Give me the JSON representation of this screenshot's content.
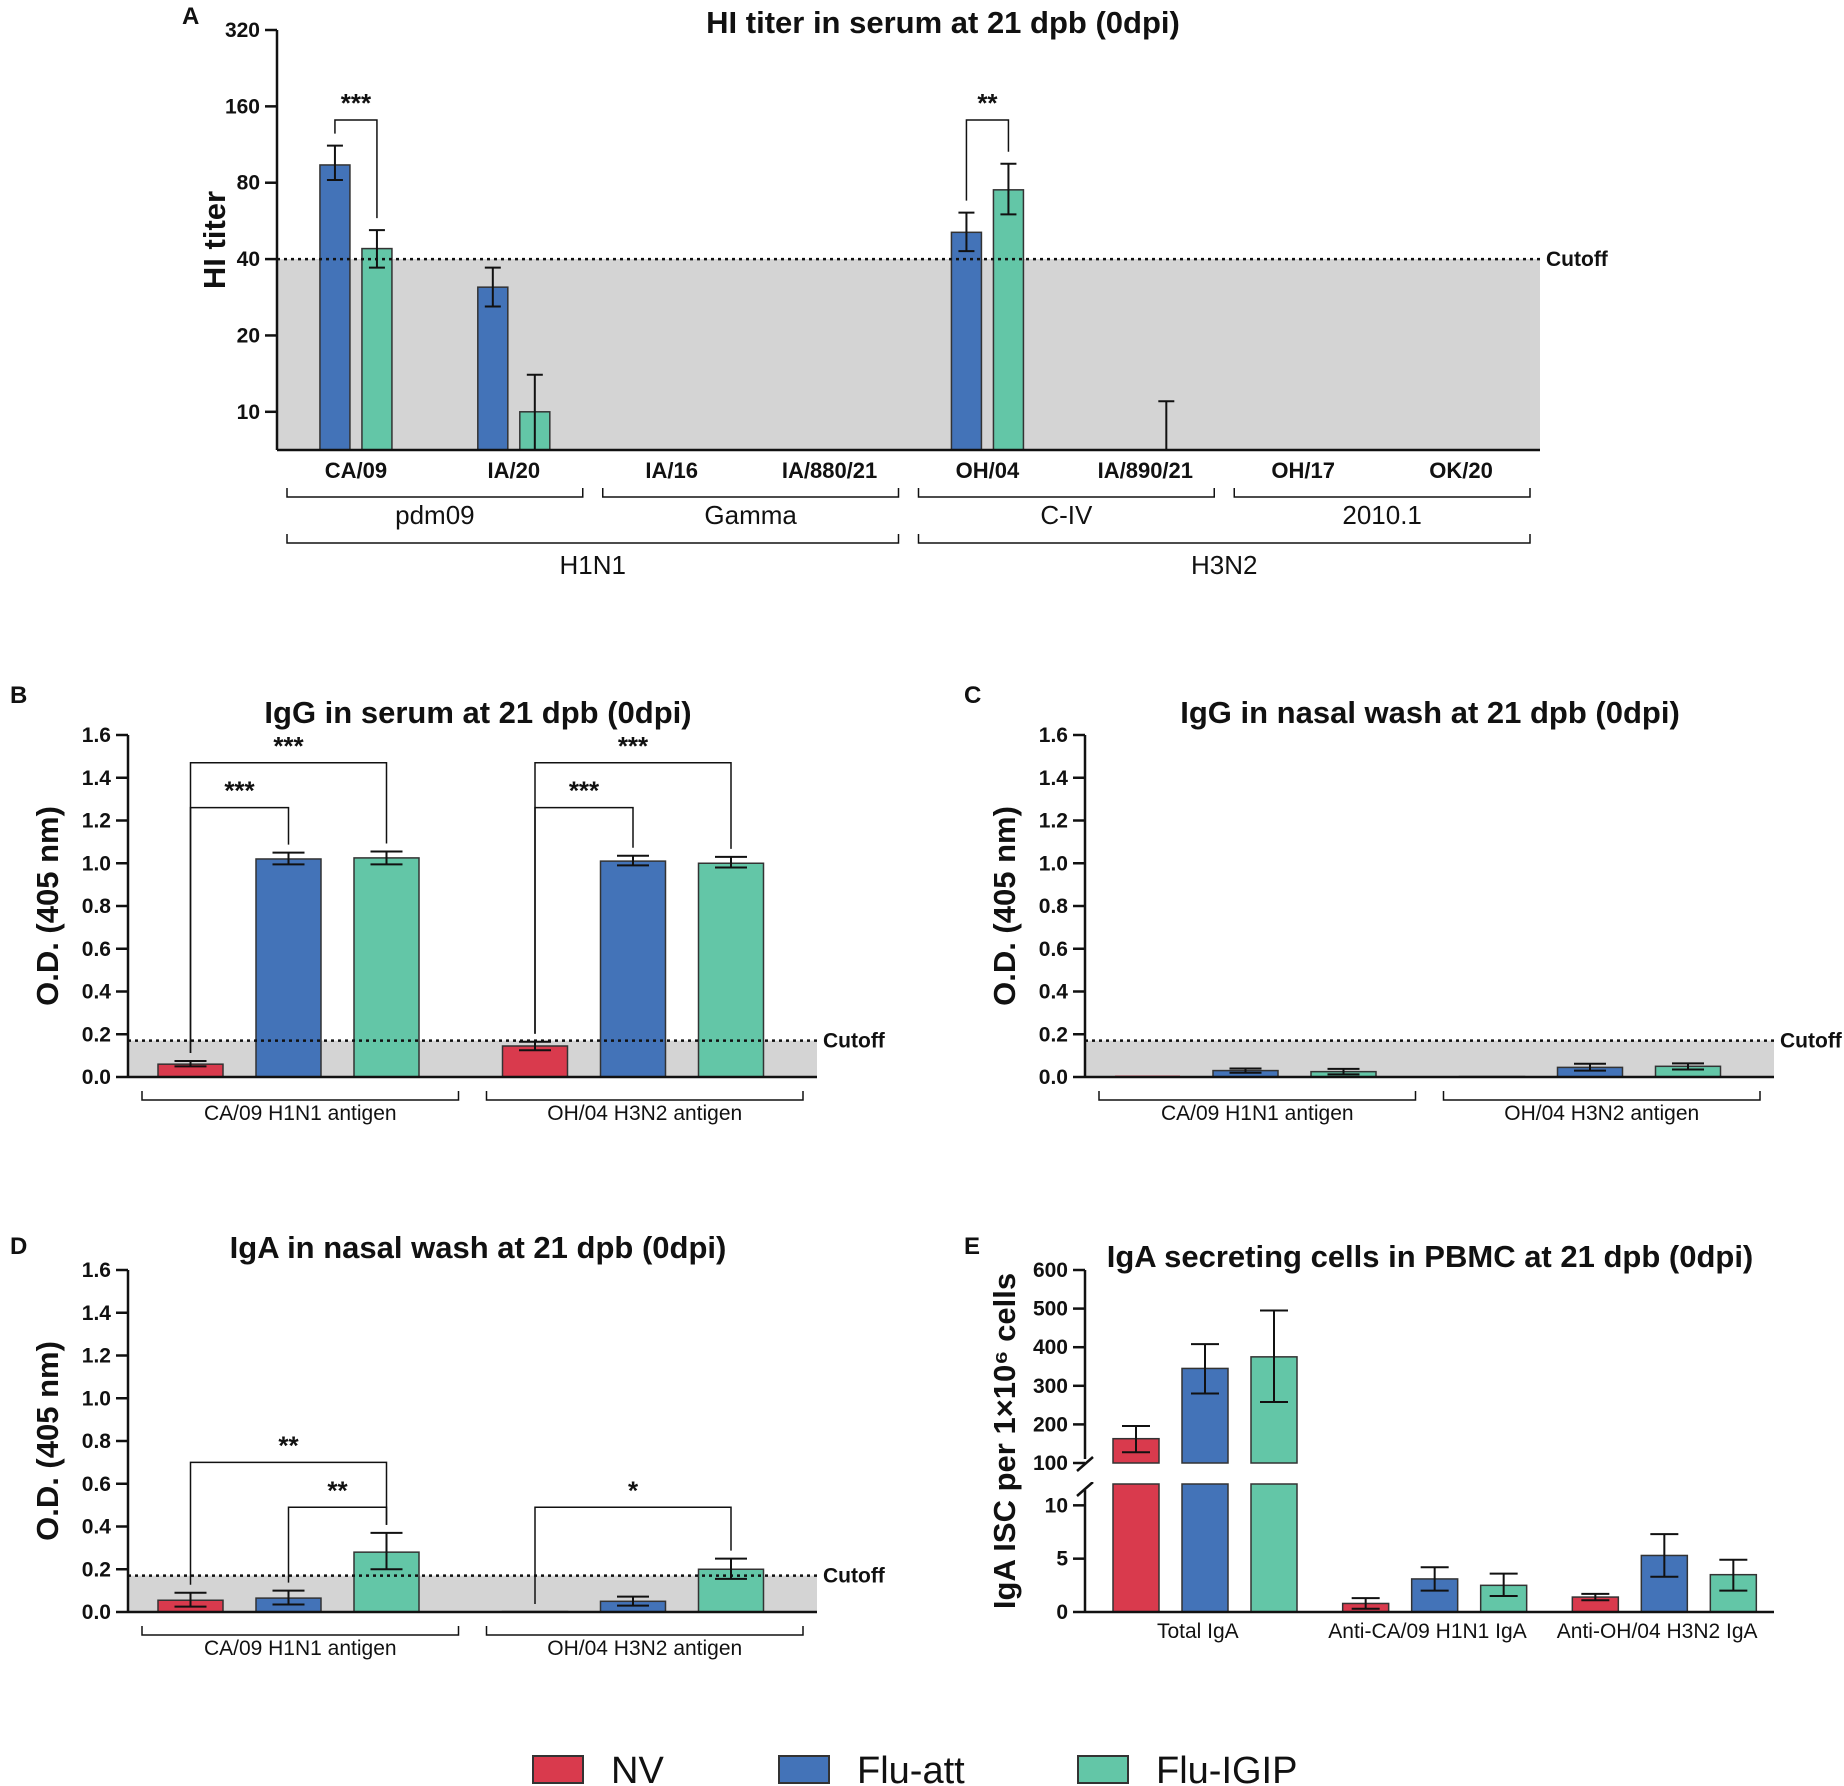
{
  "colors": {
    "NV": "#d93a4d",
    "Flu-att": "#4373b8",
    "Flu-IGIP": "#63c6a7",
    "shade": "#d4d4d4"
  },
  "legend": [
    {
      "name": "NV",
      "label": "NV"
    },
    {
      "name": "Flu-att",
      "label": "Flu-att"
    },
    {
      "name": "Flu-IGIP",
      "label": "Flu-IGIP"
    }
  ],
  "chart_data": [
    {
      "id": "A",
      "panel_letter": "A",
      "type": "bar",
      "scale": "log2",
      "title": "HI titer in serum at 21 dpb (0dpi)",
      "ylabel": "HI titer",
      "yticks": [
        10,
        20,
        40,
        80,
        160,
        320
      ],
      "ylim": [
        7.07,
        320
      ],
      "cutoff": {
        "value": 40,
        "label": "Cutoff"
      },
      "categories": [
        "CA/09",
        "IA/20",
        "IA/16",
        "IA/880/21",
        "OH/04",
        "IA/890/21",
        "OH/17",
        "OK/20"
      ],
      "series": [
        {
          "name": "Flu-att",
          "values": [
            94,
            31,
            null,
            null,
            51,
            null,
            null,
            null
          ],
          "errors": [
            [
              82,
              112
            ],
            [
              26,
              37
            ],
            null,
            null,
            [
              43,
              61
            ],
            null,
            null,
            null
          ]
        },
        {
          "name": "Flu-IGIP",
          "values": [
            44,
            10,
            null,
            null,
            75,
            7.07,
            null,
            null
          ],
          "errors": [
            [
              37,
              52
            ],
            [
              7.07,
              14
            ],
            null,
            null,
            [
              60,
              95
            ],
            [
              7.07,
              11
            ],
            null,
            null
          ]
        }
      ],
      "groups": [
        {
          "label": "pdm09",
          "from": 0,
          "to": 1
        },
        {
          "label": "Gamma",
          "from": 2,
          "to": 3
        },
        {
          "label": "C-IV",
          "from": 4,
          "to": 5
        },
        {
          "label": "2010.1",
          "from": 6,
          "to": 7
        }
      ],
      "supergroups": [
        {
          "label": "H1N1",
          "from": 0,
          "to": 3
        },
        {
          "label": "H3N2",
          "from": 4,
          "to": 7
        }
      ],
      "significance": [
        {
          "cat": 0,
          "from": 0,
          "to": 1,
          "label": "***"
        },
        {
          "cat": 4,
          "from": 0,
          "to": 1,
          "label": "**"
        }
      ]
    },
    {
      "id": "B",
      "panel_letter": "B",
      "type": "bar",
      "title": "IgG in serum at 21 dpb (0dpi)",
      "ylabel": "O.D. (405 nm)",
      "yticks": [
        0.0,
        0.2,
        0.4,
        0.6,
        0.8,
        1.0,
        1.2,
        1.4,
        1.6
      ],
      "ylim": [
        0,
        1.6
      ],
      "cutoff": {
        "value": 0.17,
        "label": "Cutoff"
      },
      "categories": [
        "CA/09 H1N1 antigen",
        "OH/04 H3N2 antigen"
      ],
      "series": [
        {
          "name": "NV",
          "values": [
            0.06,
            0.145
          ],
          "errors": [
            [
              0.05,
              0.075
            ],
            [
              0.125,
              0.165
            ]
          ]
        },
        {
          "name": "Flu-att",
          "values": [
            1.02,
            1.01
          ],
          "errors": [
            [
              0.995,
              1.05
            ],
            [
              0.99,
              1.035
            ]
          ]
        },
        {
          "name": "Flu-IGIP",
          "values": [
            1.025,
            1.0
          ],
          "errors": [
            [
              0.995,
              1.055
            ],
            [
              0.98,
              1.03
            ]
          ]
        }
      ],
      "significance": [
        {
          "cat": 0,
          "from": 0,
          "to": 1,
          "label": "***",
          "level": 1.26
        },
        {
          "cat": 0,
          "from": 0,
          "to": 2,
          "label": "***",
          "level": 1.47
        },
        {
          "cat": 1,
          "from": 0,
          "to": 1,
          "label": "***",
          "level": 1.26
        },
        {
          "cat": 1,
          "from": 0,
          "to": 2,
          "label": "***",
          "level": 1.47
        }
      ]
    },
    {
      "id": "C",
      "panel_letter": "C",
      "type": "bar",
      "title": "IgG in nasal wash at 21 dpb (0dpi)",
      "ylabel": "O.D. (405 nm)",
      "yticks": [
        0.0,
        0.2,
        0.4,
        0.6,
        0.8,
        1.0,
        1.2,
        1.4,
        1.6
      ],
      "ylim": [
        0,
        1.6
      ],
      "cutoff": {
        "value": 0.17,
        "label": "Cutoff"
      },
      "categories": [
        "CA/09 H1N1 antigen",
        "OH/04 H3N2 antigen"
      ],
      "series": [
        {
          "name": "NV",
          "values": [
            0.0,
            0.002
          ],
          "errors": [
            null,
            null
          ]
        },
        {
          "name": "Flu-att",
          "values": [
            0.03,
            0.045
          ],
          "errors": [
            [
              0.02,
              0.04
            ],
            [
              0.03,
              0.062
            ]
          ]
        },
        {
          "name": "Flu-IGIP",
          "values": [
            0.025,
            0.05
          ],
          "errors": [
            [
              0.012,
              0.038
            ],
            [
              0.035,
              0.064
            ]
          ]
        }
      ],
      "significance": []
    },
    {
      "id": "D",
      "panel_letter": "D",
      "type": "bar",
      "title": "IgA in nasal wash at 21 dpb (0dpi)",
      "ylabel": "O.D. (405 nm)",
      "yticks": [
        0.0,
        0.2,
        0.4,
        0.6,
        0.8,
        1.0,
        1.2,
        1.4,
        1.6
      ],
      "ylim": [
        0,
        1.6
      ],
      "cutoff": {
        "value": 0.17,
        "label": "Cutoff"
      },
      "categories": [
        "CA/09 H1N1 antigen",
        "OH/04 H3N2 antigen"
      ],
      "series": [
        {
          "name": "NV",
          "values": [
            0.055,
            0.002
          ],
          "errors": [
            [
              0.025,
              0.09
            ],
            null
          ]
        },
        {
          "name": "Flu-att",
          "values": [
            0.065,
            0.05
          ],
          "errors": [
            [
              0.035,
              0.1
            ],
            [
              0.03,
              0.072
            ]
          ]
        },
        {
          "name": "Flu-IGIP",
          "values": [
            0.28,
            0.2
          ],
          "errors": [
            [
              0.2,
              0.37
            ],
            [
              0.155,
              0.25
            ]
          ]
        }
      ],
      "significance": [
        {
          "cat": 0,
          "from": 0,
          "to": 2,
          "label": "**",
          "level": 0.7
        },
        {
          "cat": 0,
          "from": 1,
          "to": 2,
          "label": "**",
          "level": 0.49
        },
        {
          "cat": 1,
          "from": 0,
          "to": 2,
          "label": "*",
          "level": 0.49
        }
      ]
    },
    {
      "id": "E",
      "panel_letter": "E",
      "type": "bar",
      "scale": "broken",
      "title": "IgA secreting cells in PBMC at 21 dpb (0dpi)",
      "ylabel": "IgA ISC per 1×10⁶ cells",
      "yticks_lower": [
        0,
        5,
        10
      ],
      "yticks_upper": [
        100,
        200,
        300,
        400,
        500,
        600
      ],
      "ylim_lower": [
        0,
        12
      ],
      "ylim_upper": [
        100,
        600
      ],
      "categories": [
        "Total IgA",
        "Anti-CA/09 H1N1 IgA",
        "Anti-OH/04 H3N2 IgA"
      ],
      "series": [
        {
          "name": "NV",
          "values": [
            163,
            0.8,
            1.4
          ],
          "errors": [
            [
              128,
              196
            ],
            [
              0.3,
              1.3
            ],
            [
              1.1,
              1.7
            ]
          ]
        },
        {
          "name": "Flu-att",
          "values": [
            345,
            3.1,
            5.3
          ],
          "errors": [
            [
              280,
              408
            ],
            [
              2.0,
              4.2
            ],
            [
              3.3,
              7.3
            ]
          ]
        },
        {
          "name": "Flu-IGIP",
          "values": [
            375,
            2.5,
            3.5
          ],
          "errors": [
            [
              258,
              495
            ],
            [
              1.5,
              3.6
            ],
            [
              2.0,
              4.9
            ]
          ]
        }
      ],
      "significance": []
    }
  ]
}
